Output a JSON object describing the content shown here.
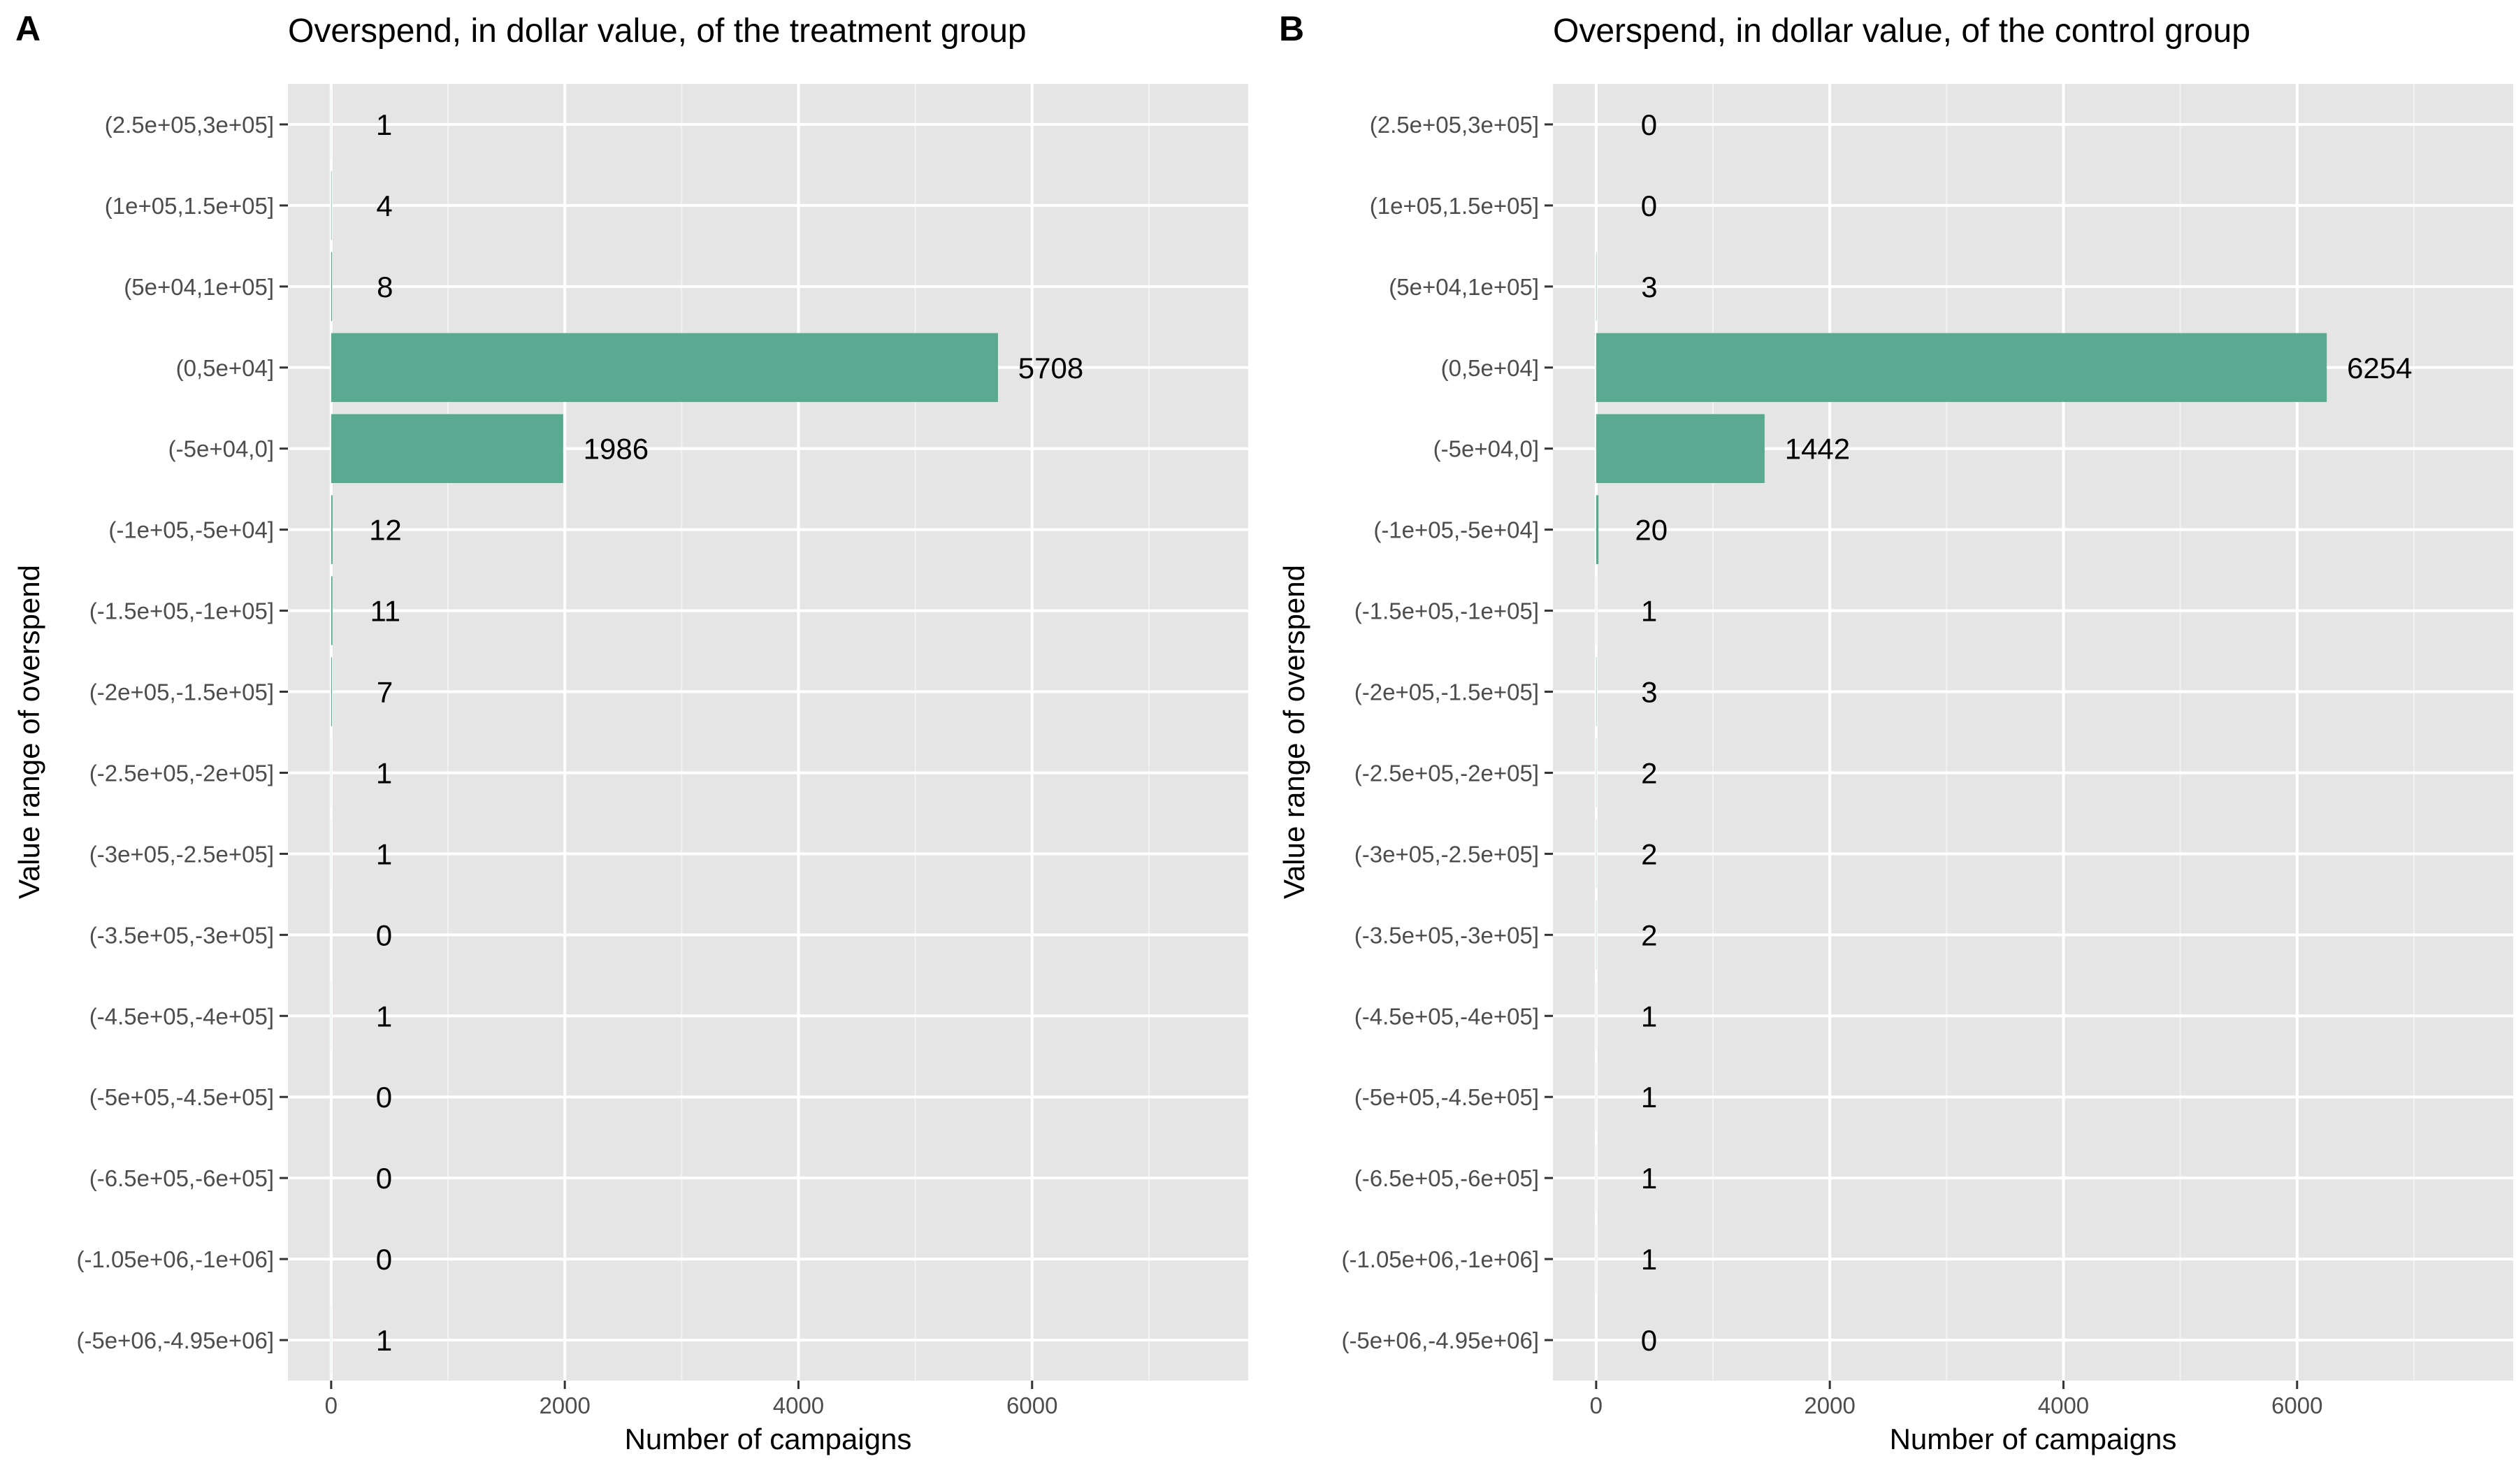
{
  "chart_data": [
    {
      "type": "bar",
      "orientation": "horizontal",
      "panel_label": "A",
      "title": "Overspend, in dollar value, of the treatment group",
      "xlabel": "Number of campaigns",
      "ylabel": "Value range of overspend",
      "xlim": [
        -370,
        7850
      ],
      "xticks": [
        0,
        2000,
        4000,
        6000
      ],
      "grid": true,
      "bar_color": "#5aa991",
      "panel_background": "#e5e5e5",
      "categories": [
        "(2.5e+05,3e+05]",
        "(1e+05,1.5e+05]",
        "(5e+04,1e+05]",
        "(0,5e+04]",
        "(-5e+04,0]",
        "(-1e+05,-5e+04]",
        "(-1.5e+05,-1e+05]",
        "(-2e+05,-1.5e+05]",
        "(-2.5e+05,-2e+05]",
        "(-3e+05,-2.5e+05]",
        "(-3.5e+05,-3e+05]",
        "(-4.5e+05,-4e+05]",
        "(-5e+05,-4.5e+05]",
        "(-6.5e+05,-6e+05]",
        "(-1.05e+06,-1e+06]",
        "(-5e+06,-4.95e+06]"
      ],
      "values": [
        1,
        4,
        8,
        5708,
        1986,
        12,
        11,
        7,
        1,
        1,
        0,
        1,
        0,
        0,
        0,
        1
      ]
    },
    {
      "type": "bar",
      "orientation": "horizontal",
      "panel_label": "B",
      "title": "Overspend, in dollar value, of the control group",
      "xlabel": "Number of campaigns",
      "ylabel": "Value range of overspend",
      "xlim": [
        -370,
        7850
      ],
      "xticks": [
        0,
        2000,
        4000,
        6000
      ],
      "grid": true,
      "bar_color": "#5aa991",
      "panel_background": "#e5e5e5",
      "categories": [
        "(2.5e+05,3e+05]",
        "(1e+05,1.5e+05]",
        "(5e+04,1e+05]",
        "(0,5e+04]",
        "(-5e+04,0]",
        "(-1e+05,-5e+04]",
        "(-1.5e+05,-1e+05]",
        "(-2e+05,-1.5e+05]",
        "(-2.5e+05,-2e+05]",
        "(-3e+05,-2.5e+05]",
        "(-3.5e+05,-3e+05]",
        "(-4.5e+05,-4e+05]",
        "(-5e+05,-4.5e+05]",
        "(-6.5e+05,-6e+05]",
        "(-1.05e+06,-1e+06]",
        "(-5e+06,-4.95e+06]"
      ],
      "values": [
        0,
        0,
        3,
        6254,
        1442,
        20,
        1,
        3,
        2,
        2,
        2,
        1,
        1,
        1,
        1,
        0
      ]
    }
  ]
}
